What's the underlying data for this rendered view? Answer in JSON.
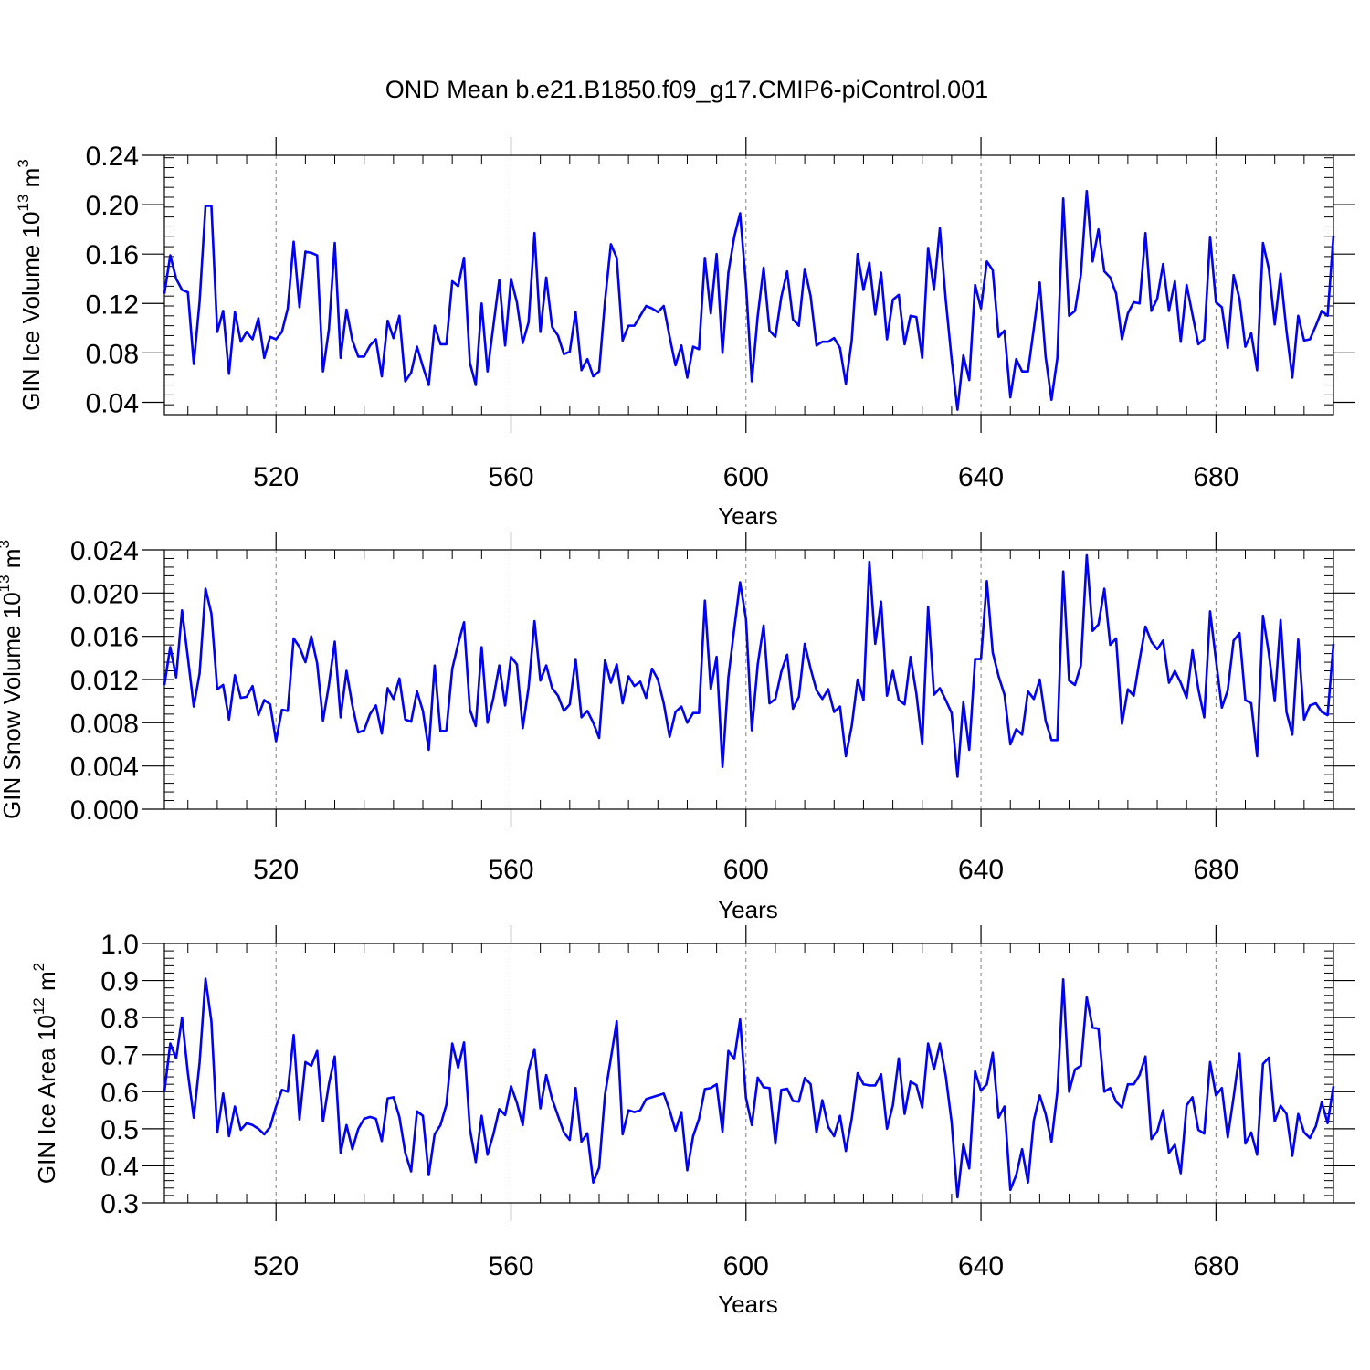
{
  "figure": {
    "title": "OND Mean b.e21.B1850.f09_g17.CMIP6-piControl.001",
    "line_color": "#0000ff",
    "grid_color": "#808080"
  },
  "chart_data": [
    {
      "type": "line",
      "ylabel": "GIN Ice Volume 10",
      "ylabel_exp": "13",
      "ylabel_unit": "m",
      "ylabel_unit_exp": "3",
      "xlabel": "Years",
      "xlim": [
        501,
        700
      ],
      "ylim": [
        0.03,
        0.24
      ],
      "xticks": [
        520,
        560,
        600,
        640,
        680
      ],
      "yticks": [
        0.04,
        0.08,
        0.12,
        0.16,
        0.2,
        0.24
      ],
      "ytick_labels": [
        "0.04",
        "0.08",
        "0.12",
        "0.16",
        "0.20",
        "0.24"
      ],
      "grid": "vertical dashed at major x ticks",
      "series": [
        {
          "x_start": 501,
          "values": [
            0.128,
            0.159,
            0.14,
            0.131,
            0.129,
            0.071,
            0.122,
            0.199,
            0.199,
            0.097,
            0.114,
            0.063,
            0.113,
            0.089,
            0.097,
            0.091,
            0.108,
            0.076,
            0.093,
            0.091,
            0.097,
            0.116,
            0.17,
            0.117,
            0.162,
            0.161,
            0.159,
            0.065,
            0.099,
            0.169,
            0.076,
            0.115,
            0.09,
            0.077,
            0.077,
            0.086,
            0.091,
            0.061,
            0.106,
            0.092,
            0.11,
            0.057,
            0.064,
            0.085,
            0.069,
            0.054,
            0.102,
            0.087,
            0.087,
            0.138,
            0.134,
            0.157,
            0.072,
            0.054,
            0.12,
            0.065,
            0.102,
            0.139,
            0.086,
            0.14,
            0.121,
            0.088,
            0.105,
            0.177,
            0.097,
            0.141,
            0.101,
            0.094,
            0.079,
            0.081,
            0.113,
            0.066,
            0.075,
            0.061,
            0.065,
            0.122,
            0.168,
            0.157,
            0.09,
            0.102,
            0.102,
            0.11,
            0.118,
            0.116,
            0.113,
            0.118,
            0.093,
            0.07,
            0.086,
            0.06,
            0.085,
            0.083,
            0.157,
            0.112,
            0.16,
            0.08,
            0.145,
            0.174,
            0.193,
            0.135,
            0.057,
            0.11,
            0.149,
            0.098,
            0.093,
            0.125,
            0.146,
            0.107,
            0.102,
            0.148,
            0.126,
            0.086,
            0.089,
            0.089,
            0.092,
            0.084,
            0.055,
            0.09,
            0.16,
            0.131,
            0.153,
            0.111,
            0.145,
            0.091,
            0.123,
            0.127,
            0.087,
            0.11,
            0.109,
            0.076,
            0.165,
            0.131,
            0.181,
            0.123,
            0.075,
            0.034,
            0.078,
            0.058,
            0.135,
            0.116,
            0.154,
            0.147,
            0.093,
            0.098,
            0.044,
            0.075,
            0.065,
            0.065,
            0.1,
            0.137,
            0.077,
            0.042,
            0.076,
            0.205,
            0.11,
            0.114,
            0.143,
            0.211,
            0.154,
            0.18,
            0.146,
            0.141,
            0.128,
            0.091,
            0.112,
            0.121,
            0.12,
            0.177,
            0.114,
            0.124,
            0.152,
            0.114,
            0.138,
            0.089,
            0.135,
            0.111,
            0.087,
            0.091,
            0.174,
            0.121,
            0.117,
            0.084,
            0.143,
            0.124,
            0.085,
            0.096,
            0.066,
            0.169,
            0.148,
            0.103,
            0.144,
            0.098,
            0.06,
            0.11,
            0.09,
            0.091,
            0.102,
            0.114,
            0.11,
            0.175
          ]
        }
      ]
    },
    {
      "type": "line",
      "ylabel": "GIN Snow Volume 10",
      "ylabel_exp": "13",
      "ylabel_unit": "m",
      "ylabel_unit_exp": "3",
      "xlabel": "Years",
      "xlim": [
        501,
        700
      ],
      "ylim": [
        0.0,
        0.024
      ],
      "xticks": [
        520,
        560,
        600,
        640,
        680
      ],
      "yticks": [
        0.0,
        0.004,
        0.008,
        0.012,
        0.016,
        0.02,
        0.024
      ],
      "ytick_labels": [
        "0.000",
        "0.004",
        "0.008",
        "0.012",
        "0.016",
        "0.020",
        "0.024"
      ],
      "grid": "vertical dashed at major x ticks",
      "series": [
        {
          "x_start": 501,
          "values": [
            0.0115,
            0.015,
            0.0122,
            0.0184,
            0.014,
            0.0095,
            0.0126,
            0.0204,
            0.0181,
            0.0111,
            0.0115,
            0.0083,
            0.0124,
            0.0103,
            0.0104,
            0.0114,
            0.0087,
            0.0101,
            0.0097,
            0.0063,
            0.0092,
            0.0091,
            0.0158,
            0.015,
            0.0136,
            0.016,
            0.0135,
            0.0082,
            0.0115,
            0.0155,
            0.0085,
            0.0128,
            0.0096,
            0.0071,
            0.0073,
            0.0088,
            0.0096,
            0.007,
            0.0112,
            0.0102,
            0.0121,
            0.0083,
            0.0081,
            0.0109,
            0.0091,
            0.0055,
            0.0133,
            0.0072,
            0.0073,
            0.013,
            0.0153,
            0.0173,
            0.0092,
            0.0077,
            0.015,
            0.008,
            0.0103,
            0.0133,
            0.0096,
            0.0141,
            0.0134,
            0.0075,
            0.0113,
            0.0174,
            0.0119,
            0.0133,
            0.0112,
            0.0105,
            0.0091,
            0.0097,
            0.0139,
            0.0085,
            0.0091,
            0.008,
            0.0066,
            0.0138,
            0.0117,
            0.0134,
            0.0098,
            0.0123,
            0.0114,
            0.0118,
            0.0103,
            0.013,
            0.012,
            0.0098,
            0.0067,
            0.009,
            0.0095,
            0.008,
            0.0089,
            0.0089,
            0.0193,
            0.0111,
            0.0141,
            0.0039,
            0.0122,
            0.0167,
            0.021,
            0.0176,
            0.0073,
            0.0134,
            0.017,
            0.0098,
            0.0102,
            0.0127,
            0.0143,
            0.0093,
            0.0104,
            0.0153,
            0.013,
            0.011,
            0.0102,
            0.0111,
            0.009,
            0.0095,
            0.0049,
            0.0077,
            0.012,
            0.0101,
            0.0229,
            0.0153,
            0.0192,
            0.0105,
            0.0128,
            0.0101,
            0.0097,
            0.0141,
            0.0107,
            0.006,
            0.0187,
            0.0106,
            0.0112,
            0.0101,
            0.0089,
            0.003,
            0.0099,
            0.0055,
            0.0139,
            0.0139,
            0.0211,
            0.0145,
            0.0123,
            0.0106,
            0.006,
            0.0074,
            0.0069,
            0.0109,
            0.0102,
            0.012,
            0.0082,
            0.0064,
            0.0064,
            0.022,
            0.0119,
            0.0115,
            0.0133,
            0.0235,
            0.0165,
            0.0171,
            0.0204,
            0.0152,
            0.0158,
            0.0079,
            0.0111,
            0.0105,
            0.0138,
            0.0169,
            0.0155,
            0.0148,
            0.0156,
            0.0117,
            0.0128,
            0.0117,
            0.0103,
            0.0147,
            0.0111,
            0.0085,
            0.0183,
            0.0138,
            0.0094,
            0.011,
            0.0156,
            0.0163,
            0.0101,
            0.0098,
            0.0049,
            0.0179,
            0.0144,
            0.01,
            0.0175,
            0.009,
            0.0069,
            0.0157,
            0.0083,
            0.0096,
            0.0098,
            0.009,
            0.0087,
            0.0153
          ]
        }
      ]
    },
    {
      "type": "line",
      "ylabel": "GIN Ice Area 10",
      "ylabel_exp": "12",
      "ylabel_unit": "m",
      "ylabel_unit_exp": "2",
      "xlabel": "Years",
      "xlim": [
        501,
        700
      ],
      "ylim": [
        0.3,
        1.0
      ],
      "xticks": [
        520,
        560,
        600,
        640,
        680
      ],
      "yticks": [
        0.3,
        0.4,
        0.5,
        0.6,
        0.7,
        0.8,
        0.9,
        1.0
      ],
      "ytick_labels": [
        "0.3",
        "0.4",
        "0.5",
        "0.6",
        "0.7",
        "0.8",
        "0.9",
        "1.0"
      ],
      "grid": "vertical dashed at major x ticks",
      "series": [
        {
          "x_start": 501,
          "values": [
            0.6,
            0.73,
            0.69,
            0.8,
            0.65,
            0.53,
            0.68,
            0.905,
            0.79,
            0.49,
            0.595,
            0.48,
            0.56,
            0.497,
            0.515,
            0.51,
            0.5,
            0.485,
            0.505,
            0.56,
            0.605,
            0.6,
            0.753,
            0.525,
            0.68,
            0.67,
            0.71,
            0.52,
            0.62,
            0.695,
            0.435,
            0.51,
            0.445,
            0.5,
            0.527,
            0.532,
            0.527,
            0.467,
            0.582,
            0.585,
            0.532,
            0.435,
            0.385,
            0.547,
            0.535,
            0.375,
            0.485,
            0.51,
            0.565,
            0.73,
            0.665,
            0.733,
            0.5,
            0.41,
            0.535,
            0.43,
            0.485,
            0.553,
            0.537,
            0.615,
            0.57,
            0.51,
            0.657,
            0.715,
            0.555,
            0.645,
            0.58,
            0.535,
            0.49,
            0.47,
            0.61,
            0.465,
            0.488,
            0.355,
            0.395,
            0.592,
            0.69,
            0.79,
            0.485,
            0.55,
            0.545,
            0.55,
            0.58,
            0.585,
            0.59,
            0.595,
            0.55,
            0.495,
            0.545,
            0.388,
            0.48,
            0.527,
            0.607,
            0.61,
            0.62,
            0.492,
            0.71,
            0.688,
            0.795,
            0.583,
            0.51,
            0.638,
            0.612,
            0.61,
            0.46,
            0.605,
            0.608,
            0.575,
            0.573,
            0.637,
            0.62,
            0.49,
            0.577,
            0.505,
            0.48,
            0.535,
            0.44,
            0.527,
            0.65,
            0.62,
            0.617,
            0.617,
            0.647,
            0.5,
            0.563,
            0.69,
            0.54,
            0.627,
            0.618,
            0.557,
            0.73,
            0.66,
            0.73,
            0.643,
            0.518,
            0.315,
            0.458,
            0.393,
            0.655,
            0.603,
            0.62,
            0.705,
            0.53,
            0.56,
            0.335,
            0.375,
            0.445,
            0.355,
            0.523,
            0.59,
            0.54,
            0.465,
            0.6,
            0.903,
            0.6,
            0.66,
            0.67,
            0.855,
            0.773,
            0.77,
            0.6,
            0.61,
            0.573,
            0.557,
            0.62,
            0.62,
            0.645,
            0.695,
            0.472,
            0.493,
            0.55,
            0.435,
            0.457,
            0.38,
            0.563,
            0.585,
            0.497,
            0.487,
            0.68,
            0.59,
            0.61,
            0.477,
            0.585,
            0.703,
            0.46,
            0.49,
            0.43,
            0.675,
            0.692,
            0.52,
            0.562,
            0.54,
            0.427,
            0.54,
            0.49,
            0.475,
            0.507,
            0.572,
            0.515,
            0.615
          ]
        }
      ]
    }
  ]
}
